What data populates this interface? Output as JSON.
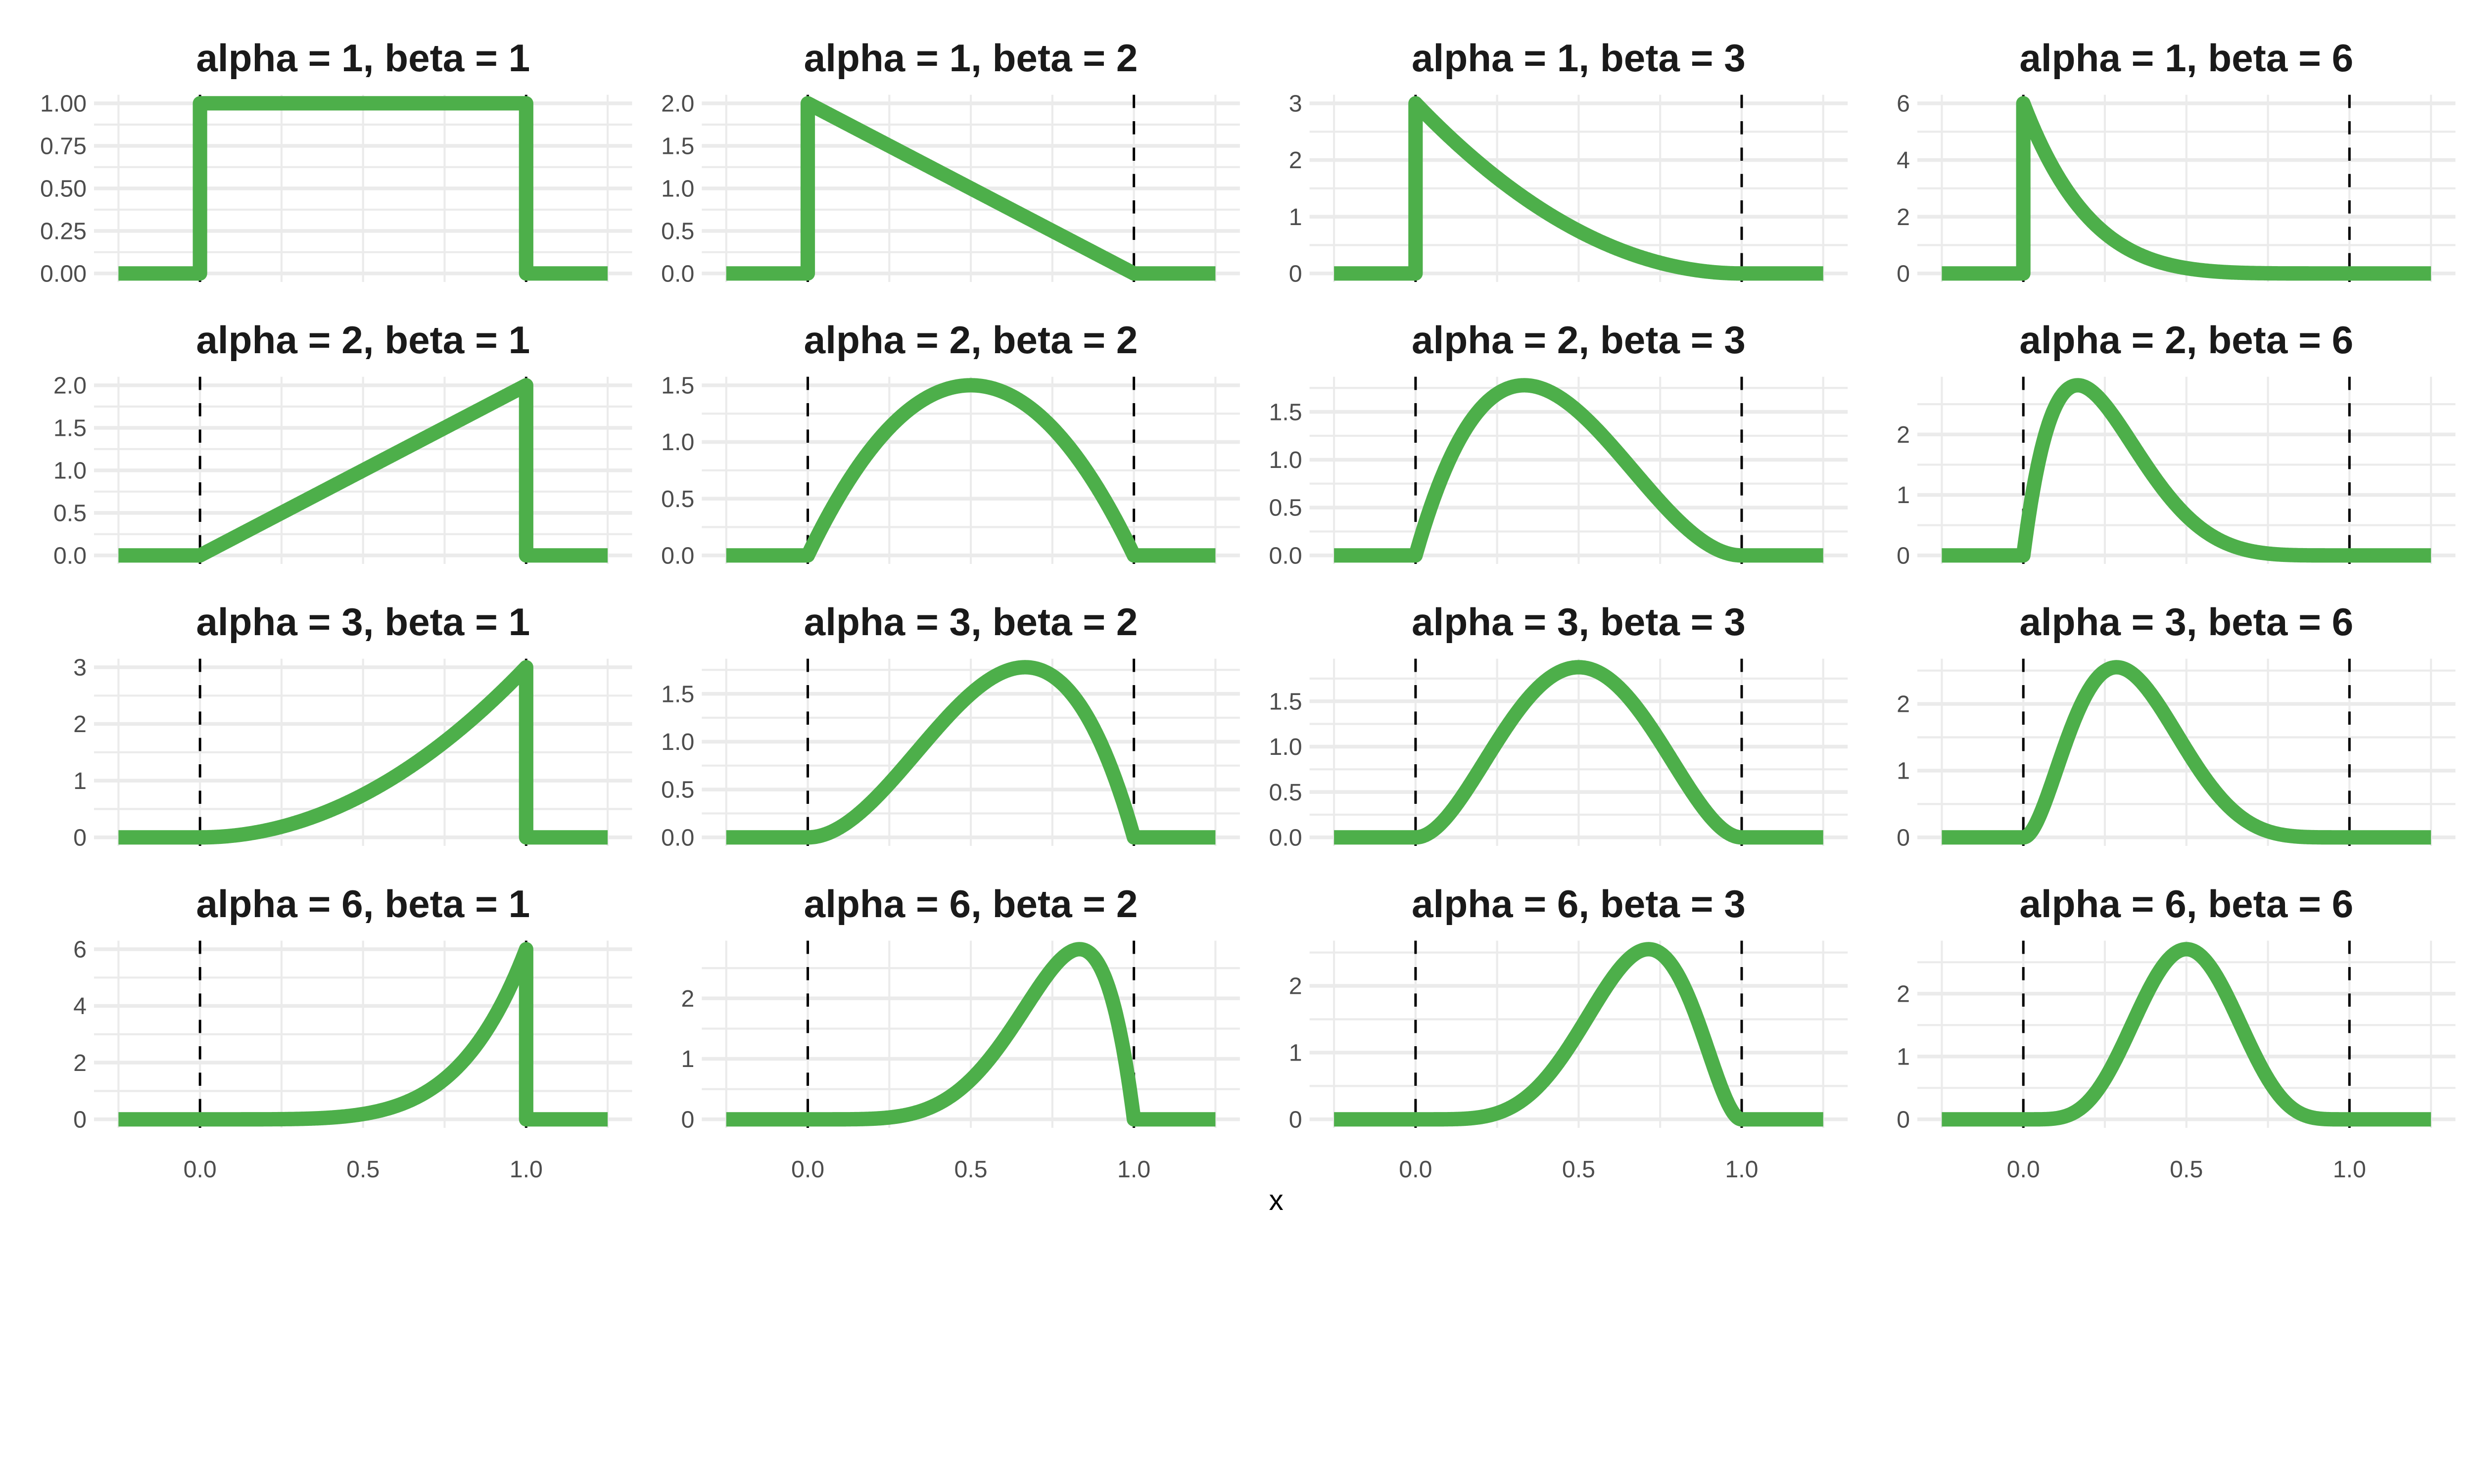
{
  "chart_data": {
    "type": "line",
    "layout": "facet-grid 4x4",
    "xlabel": "x",
    "ylabel": "",
    "xlim": [
      -0.25,
      1.25
    ],
    "x_ticks": [
      "0.0",
      "0.5",
      "1.0"
    ],
    "x_tick_values": [
      0,
      0.5,
      1.0
    ],
    "reference_lines": {
      "style": "dashed",
      "x": [
        0,
        1
      ],
      "color": "#000000"
    },
    "line_color": "#4DAF4A",
    "grid": true,
    "grid_color": "#EBEBEB",
    "function": "Beta density",
    "panels": [
      {
        "title": "alpha = 1, beta = 1",
        "alpha": 1,
        "beta": 1,
        "y_ticks": [
          "0.00",
          "0.25",
          "0.50",
          "0.75",
          "1.00"
        ],
        "y_tick_values": [
          0,
          0.25,
          0.5,
          0.75,
          1
        ]
      },
      {
        "title": "alpha = 1, beta = 2",
        "alpha": 1,
        "beta": 2,
        "y_ticks": [
          "0.0",
          "0.5",
          "1.0",
          "1.5",
          "2.0"
        ],
        "y_tick_values": [
          0,
          0.5,
          1,
          1.5,
          2
        ]
      },
      {
        "title": "alpha = 1, beta = 3",
        "alpha": 1,
        "beta": 3,
        "y_ticks": [
          "0",
          "1",
          "2",
          "3"
        ],
        "y_tick_values": [
          0,
          1,
          2,
          3
        ]
      },
      {
        "title": "alpha = 1, beta = 6",
        "alpha": 1,
        "beta": 6,
        "y_ticks": [
          "0",
          "2",
          "4",
          "6"
        ],
        "y_tick_values": [
          0,
          2,
          4,
          6
        ]
      },
      {
        "title": "alpha = 2, beta = 1",
        "alpha": 2,
        "beta": 1,
        "y_ticks": [
          "0.0",
          "0.5",
          "1.0",
          "1.5",
          "2.0"
        ],
        "y_tick_values": [
          0,
          0.5,
          1,
          1.5,
          2
        ]
      },
      {
        "title": "alpha = 2, beta = 2",
        "alpha": 2,
        "beta": 2,
        "y_ticks": [
          "0.0",
          "0.5",
          "1.0",
          "1.5"
        ],
        "y_tick_values": [
          0,
          0.5,
          1,
          1.5
        ]
      },
      {
        "title": "alpha = 2, beta = 3",
        "alpha": 2,
        "beta": 3,
        "y_ticks": [
          "0.0",
          "0.5",
          "1.0",
          "1.5"
        ],
        "y_tick_values": [
          0,
          0.5,
          1,
          1.5
        ]
      },
      {
        "title": "alpha = 2, beta = 6",
        "alpha": 2,
        "beta": 6,
        "y_ticks": [
          "0",
          "1",
          "2"
        ],
        "y_tick_values": [
          0,
          1,
          2
        ]
      },
      {
        "title": "alpha = 3, beta = 1",
        "alpha": 3,
        "beta": 1,
        "y_ticks": [
          "0",
          "1",
          "2",
          "3"
        ],
        "y_tick_values": [
          0,
          1,
          2,
          3
        ]
      },
      {
        "title": "alpha = 3, beta = 2",
        "alpha": 3,
        "beta": 2,
        "y_ticks": [
          "0.0",
          "0.5",
          "1.0",
          "1.5"
        ],
        "y_tick_values": [
          0,
          0.5,
          1,
          1.5
        ]
      },
      {
        "title": "alpha = 3, beta = 3",
        "alpha": 3,
        "beta": 3,
        "y_ticks": [
          "0.0",
          "0.5",
          "1.0",
          "1.5"
        ],
        "y_tick_values": [
          0,
          0.5,
          1,
          1.5
        ]
      },
      {
        "title": "alpha = 3, beta = 6",
        "alpha": 3,
        "beta": 6,
        "y_ticks": [
          "0",
          "1",
          "2"
        ],
        "y_tick_values": [
          0,
          1,
          2
        ]
      },
      {
        "title": "alpha = 6, beta = 1",
        "alpha": 6,
        "beta": 1,
        "y_ticks": [
          "0",
          "2",
          "4",
          "6"
        ],
        "y_tick_values": [
          0,
          2,
          4,
          6
        ]
      },
      {
        "title": "alpha = 6, beta = 2",
        "alpha": 6,
        "beta": 2,
        "y_ticks": [
          "0",
          "1",
          "2"
        ],
        "y_tick_values": [
          0,
          1,
          2
        ]
      },
      {
        "title": "alpha = 6, beta = 3",
        "alpha": 6,
        "beta": 3,
        "y_ticks": [
          "0",
          "1",
          "2"
        ],
        "y_tick_values": [
          0,
          1,
          2
        ]
      },
      {
        "title": "alpha = 6, beta = 6",
        "alpha": 6,
        "beta": 6,
        "y_ticks": [
          "0",
          "1",
          "2"
        ],
        "y_tick_values": [
          0,
          1,
          2
        ]
      }
    ]
  }
}
